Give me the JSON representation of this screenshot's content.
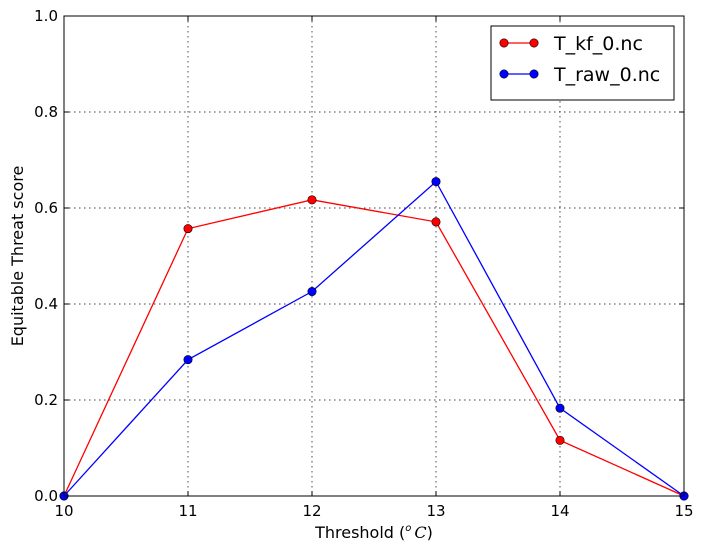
{
  "chart_data": {
    "type": "line",
    "xlabel": "Threshold ($^o\\,C$)",
    "xlabel_parts": {
      "prefix": "Threshold (",
      "sup": "o",
      "unit": "C",
      "suffix": ")"
    },
    "ylabel": "Equitable Threat score",
    "x": [
      10,
      11,
      12,
      13,
      14,
      15
    ],
    "xlim": [
      10,
      15
    ],
    "ylim": [
      0,
      1.0
    ],
    "xticks": [
      "10",
      "11",
      "12",
      "13",
      "14",
      "15"
    ],
    "yticks": [
      "0.0",
      "0.2",
      "0.4",
      "0.6",
      "0.8",
      "1.0"
    ],
    "grid": true,
    "legend_position": "top-right",
    "series": [
      {
        "name": "T_kf_0.nc",
        "color": "#ff0000",
        "values": [
          0.0,
          0.557,
          0.617,
          0.571,
          0.116,
          0.0
        ]
      },
      {
        "name": "T_raw_0.nc",
        "color": "#0000ff",
        "values": [
          0.0,
          0.284,
          0.426,
          0.655,
          0.183,
          0.0
        ]
      }
    ]
  }
}
